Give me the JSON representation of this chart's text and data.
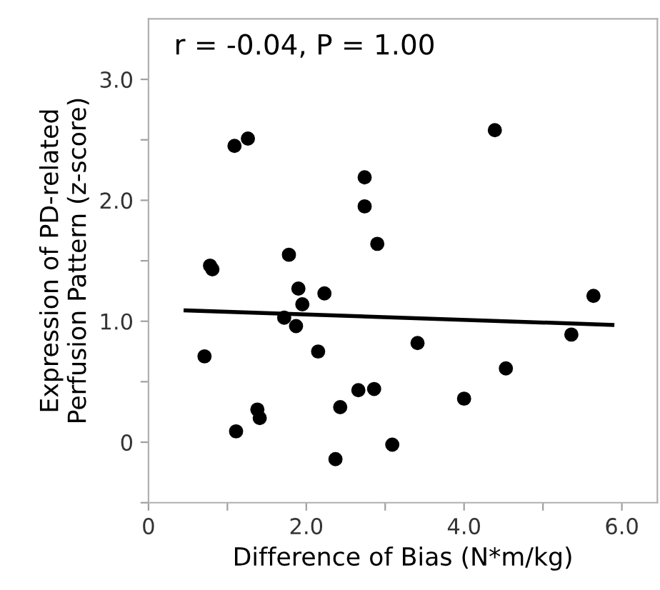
{
  "chart_data": {
    "type": "scatter",
    "xlabel": "Difference of Bias (N*m/kg)",
    "ylabel": "Expression of PD-related\nPerfusion Pattern (z-score)",
    "annotations": [
      "r = -0.04, P = 1.00"
    ],
    "series": [
      {
        "color": "#000000",
        "marker": "circle",
        "x": [
          1.09,
          1.26,
          4.39,
          2.74,
          2.74,
          2.9,
          1.78,
          0.78,
          0.81,
          1.9,
          2.23,
          1.95,
          1.72,
          1.87,
          5.64,
          5.36,
          3.41,
          0.71,
          2.15,
          4.53,
          2.66,
          2.86,
          4.0,
          2.43,
          1.38,
          1.41,
          1.11,
          3.09,
          2.37
        ],
        "values": [
          2.45,
          2.51,
          2.58,
          2.19,
          1.95,
          1.64,
          1.55,
          1.46,
          1.43,
          1.27,
          1.23,
          1.14,
          1.03,
          0.96,
          1.21,
          0.89,
          0.82,
          0.71,
          0.75,
          0.61,
          0.43,
          0.44,
          0.36,
          0.29,
          0.27,
          0.2,
          0.09,
          -0.02,
          -0.14
        ]
      },
      {
        "type": "line",
        "color": "#000000",
        "x": [
          0.47,
          5.88
        ],
        "values": [
          1.09,
          0.97
        ]
      }
    ],
    "xlim": [
      0,
      6.45
    ],
    "ylim": [
      -0.5,
      3.5
    ],
    "xticks": [
      0,
      {
        "value": 1.0,
        "label": null
      },
      {
        "value": 2.0,
        "label": "2.0"
      },
      {
        "value": 3.0,
        "label": null
      },
      {
        "value": 4.0,
        "label": "4.0"
      },
      {
        "value": 5.0,
        "label": null
      },
      {
        "value": 6.0,
        "label": "6.0"
      }
    ],
    "yticks": [
      {
        "value": -0.5,
        "label": null
      },
      0,
      {
        "value": 0.5,
        "label": null
      },
      {
        "value": 1.0,
        "label": "1.0"
      },
      {
        "value": 1.5,
        "label": null
      },
      {
        "value": 2.0,
        "label": "2.0"
      },
      {
        "value": 2.5,
        "label": null
      },
      {
        "value": 3.0,
        "label": "3.0"
      }
    ],
    "grid": false,
    "legend": false
  }
}
